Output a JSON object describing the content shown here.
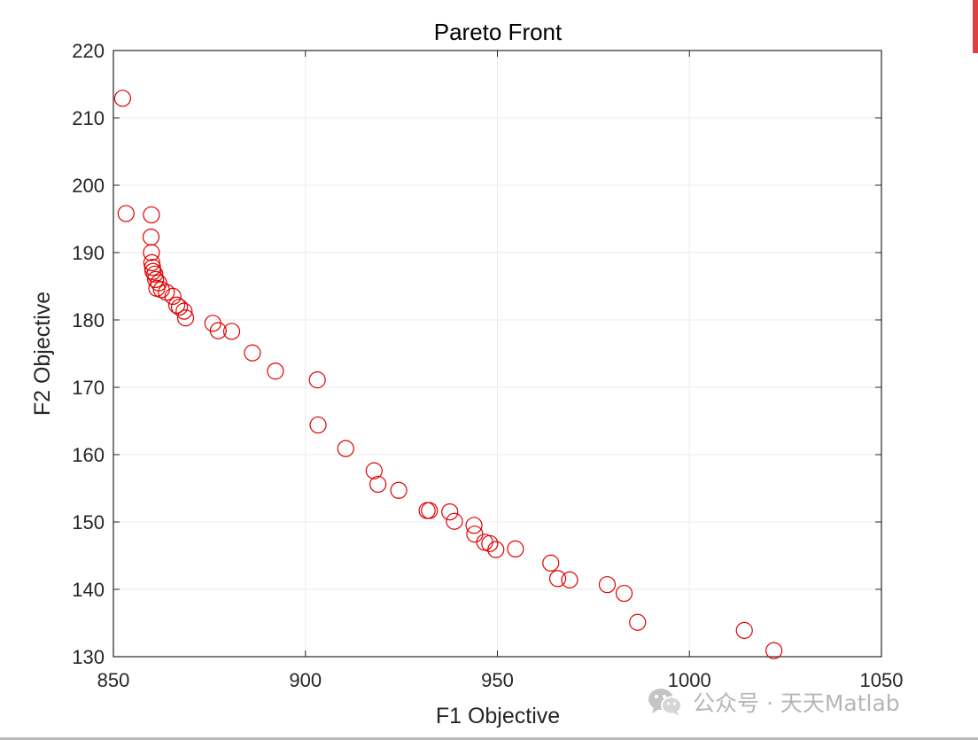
{
  "chart_data": {
    "type": "scatter",
    "title": "Pareto Front",
    "xlabel": "F1 Objective",
    "ylabel": "F2 Objective",
    "xlim": [
      850,
      1050
    ],
    "ylim": [
      130,
      220
    ],
    "xticks": [
      850,
      900,
      950,
      1000,
      1050
    ],
    "yticks": [
      130,
      140,
      150,
      160,
      170,
      180,
      190,
      200,
      210,
      220
    ],
    "xtick_labels": [
      "850",
      "900",
      "950",
      "1000",
      "1050"
    ],
    "ytick_labels": [
      "130",
      "140",
      "150",
      "160",
      "170",
      "180",
      "190",
      "200",
      "210",
      "220"
    ],
    "grid": true,
    "marker": "circle-open",
    "marker_color": "#e00000",
    "series": [
      {
        "x": [
          852.4,
          853.3,
          859.9,
          859.8,
          859.9,
          860.0,
          860.2,
          860.3,
          860.8,
          861.0,
          861.3,
          861.8,
          862.5,
          863.8,
          865.5,
          866.5,
          867.2,
          868.4,
          868.8,
          875.9,
          877.3,
          880.8,
          886.2,
          892.2,
          903.1,
          903.3,
          910.5,
          917.9,
          918.9,
          924.3,
          931.7,
          932.3,
          937.6,
          938.8,
          943.9,
          944.1,
          946.7,
          948.0,
          949.6,
          954.7,
          963.9,
          965.7,
          968.8,
          978.6,
          983.0,
          986.5,
          1014.3,
          1022.0
        ],
        "y": [
          212.9,
          195.8,
          195.6,
          192.3,
          190.0,
          188.5,
          187.8,
          187.2,
          186.8,
          186.0,
          184.7,
          185.5,
          184.5,
          184.1,
          183.5,
          182.2,
          181.9,
          181.3,
          180.3,
          179.5,
          178.4,
          178.3,
          175.1,
          172.4,
          171.1,
          164.4,
          160.9,
          157.6,
          155.6,
          154.7,
          151.7,
          151.7,
          151.5,
          150.1,
          149.5,
          148.2,
          147.0,
          146.8,
          145.9,
          146.0,
          143.9,
          141.6,
          141.4,
          140.7,
          139.4,
          135.1,
          133.9,
          130.9
        ]
      }
    ]
  },
  "watermark": {
    "icon": "wechat-icon",
    "text": "公众号 · 天天Matlab"
  }
}
